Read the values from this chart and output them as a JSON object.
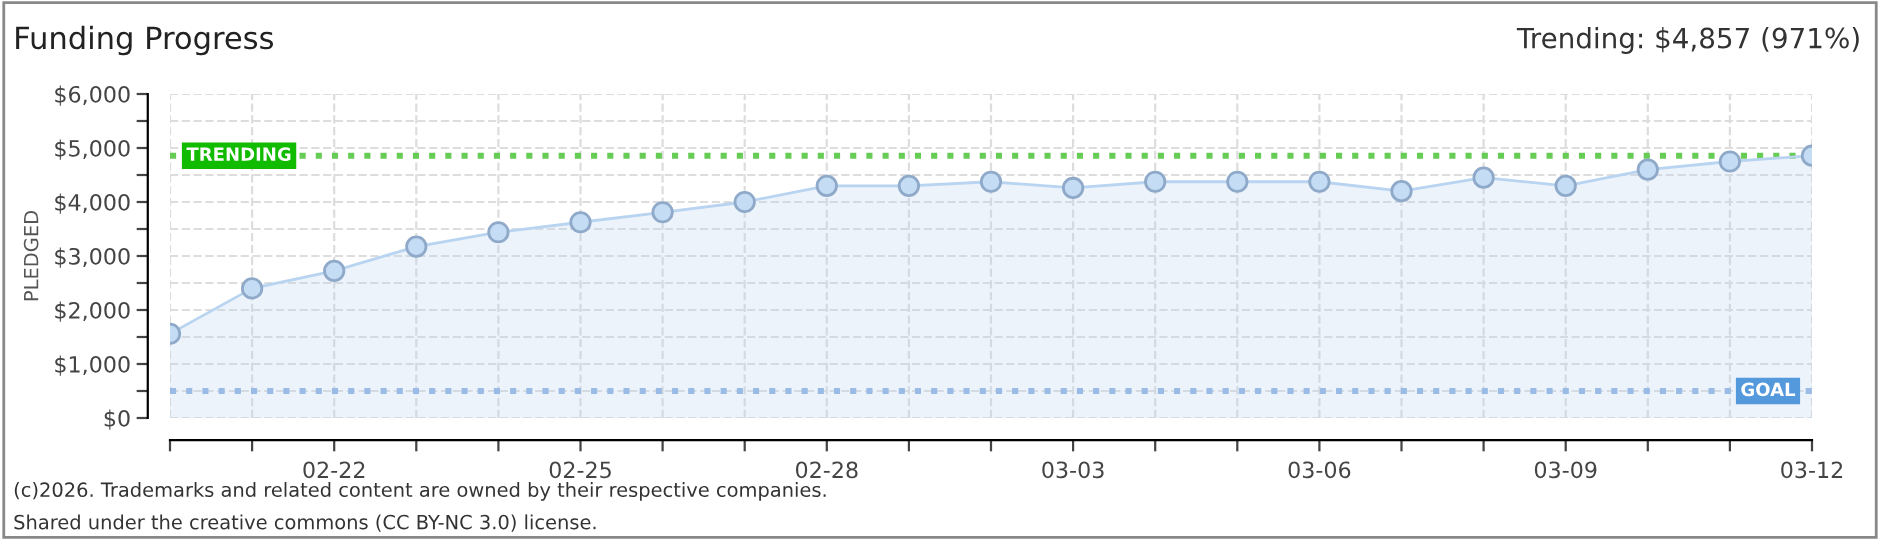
{
  "chart_data": {
    "type": "area",
    "title": "Funding Progress",
    "ylabel": "PLEDGED",
    "x": [
      "2026-02-20",
      "2026-02-21",
      "2026-02-22",
      "2026-02-23",
      "2026-02-24",
      "2026-02-25",
      "2026-02-26",
      "2026-02-27",
      "2026-02-28",
      "2026-03-01",
      "2026-03-02",
      "2026-03-03",
      "2026-03-04",
      "2026-03-05",
      "2026-03-06",
      "2026-03-07",
      "2026-03-08",
      "2026-03-09",
      "2026-03-10",
      "2026-03-11",
      "2026-03-12"
    ],
    "series": [
      {
        "color": "#b8d4f0",
        "values": [
          1560,
          2400,
          2725,
          3175,
          3440,
          3625,
          3810,
          4000,
          4300,
          4300,
          4375,
          4260,
          4375,
          4375,
          4375,
          4200,
          4450,
          4300,
          4600,
          4750,
          4857
        ]
      }
    ],
    "marker": "circle",
    "line_style": "solid",
    "grid": true,
    "legend": false,
    "xlim": [
      "2026-02-20",
      "2026-03-12"
    ],
    "xticks": [
      {
        "value": "2026-02-20",
        "label": null
      },
      {
        "value": "2026-02-21",
        "label": null
      },
      {
        "value": "2026-02-22",
        "label": "02-22"
      },
      {
        "value": "2026-02-23",
        "label": null
      },
      {
        "value": "2026-02-24",
        "label": null
      },
      {
        "value": "2026-02-25",
        "label": "02-25"
      },
      {
        "value": "2026-02-26",
        "label": null
      },
      {
        "value": "2026-02-27",
        "label": null
      },
      {
        "value": "2026-02-28",
        "label": "02-28"
      },
      {
        "value": "2026-03-01",
        "label": null
      },
      {
        "value": "2026-03-02",
        "label": null
      },
      {
        "value": "2026-03-03",
        "label": "03-03"
      },
      {
        "value": "2026-03-04",
        "label": null
      },
      {
        "value": "2026-03-05",
        "label": null
      },
      {
        "value": "2026-03-06",
        "label": "03-06"
      },
      {
        "value": "2026-03-07",
        "label": null
      },
      {
        "value": "2026-03-08",
        "label": null
      },
      {
        "value": "2026-03-09",
        "label": "03-09"
      },
      {
        "value": "2026-03-10",
        "label": null
      },
      {
        "value": "2026-03-11",
        "label": null
      },
      {
        "value": "2026-03-12",
        "label": "03-12"
      }
    ],
    "ylim": [
      0,
      6000
    ],
    "yticks": [
      {
        "value": 0,
        "label": "$0"
      },
      {
        "value": 500,
        "label": null
      },
      {
        "value": 1000,
        "label": "$1,000"
      },
      {
        "value": 1500,
        "label": null
      },
      {
        "value": 2000,
        "label": "$2,000"
      },
      {
        "value": 2500,
        "label": null
      },
      {
        "value": 3000,
        "label": "$3,000"
      },
      {
        "value": 3500,
        "label": null
      },
      {
        "value": 4000,
        "label": "$4,000"
      },
      {
        "value": 4500,
        "label": null
      },
      {
        "value": 5000,
        "label": "$5,000"
      },
      {
        "value": 5500,
        "label": null
      },
      {
        "value": 6000,
        "label": "$6,000"
      }
    ],
    "ref_lines": [
      {
        "axis": "y",
        "value": 4857,
        "label": "TRENDING",
        "color": "#66cc55",
        "line_style": "dotted"
      },
      {
        "axis": "y",
        "value": 500,
        "label": "GOAL",
        "color": "#99bbe6",
        "line_style": "dotted"
      }
    ],
    "annotations": [
      "Trending: $4,857 (971%)",
      "(c)2026. Trademarks and related content are owned by their respective companies.",
      "Shared under the creative commons (CC BY-NC 3.0) license."
    ]
  }
}
